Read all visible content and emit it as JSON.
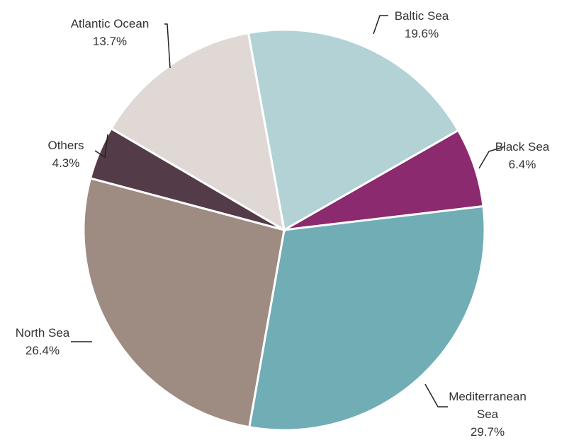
{
  "chart_data": {
    "type": "pie",
    "categories": [
      "Baltic Sea",
      "Black Sea",
      "Mediterranean Sea",
      "North Sea",
      "Others",
      "Atlantic Ocean"
    ],
    "values": [
      19.6,
      6.4,
      29.7,
      26.4,
      4.3,
      13.7
    ],
    "value_labels": [
      "19.6%",
      "6.4%",
      "29.7%",
      "26.4%",
      "4.3%",
      "13.7%"
    ],
    "colors": [
      "#b3d2d6",
      "#8b2a6e",
      "#70adb5",
      "#9e8b82",
      "#533b48",
      "#e0d8d4"
    ]
  }
}
